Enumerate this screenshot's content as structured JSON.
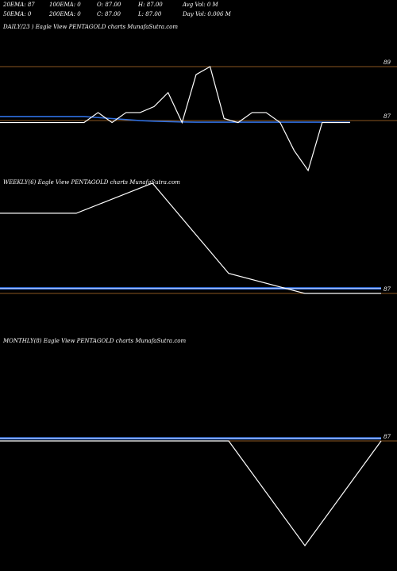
{
  "header": {
    "row1": [
      "20EMA: 87",
      "100EMA: 0",
      "O: 87.00",
      "H: 87.00",
      "Avg Vol: 0  M"
    ],
    "row2": [
      "50EMA: 0",
      "200EMA: 0",
      "C: 87.00",
      "L: 87.00",
      "Day Vol: 0.006  M"
    ]
  },
  "panels": {
    "daily_title": "DAILY/23                   ) Eagle  View  PENTAGOLD charts MunafaSutra.com",
    "weekly_title": "WEEKLY(6) Eagle  View  PENTAGOLD charts MunafaSutra.com",
    "monthly_title": "MONTHLY(8) Eagle  View  PENTAGOLD charts MunafaSutra.com"
  },
  "colors": {
    "background": "#000000",
    "price": "#ffffff",
    "ema": "#2f6fe0",
    "ref_line": "#b8732a"
  },
  "chart_data": [
    {
      "type": "line",
      "title": "DAILY",
      "ticks": [
        89,
        87
      ],
      "series": [
        {
          "values": [
            87,
            87,
            87,
            87,
            87,
            87,
            87,
            87.5,
            87,
            87.5,
            87.5,
            87.8,
            88.5,
            87,
            89.4,
            89.8,
            87.2,
            87,
            87.5,
            87.5,
            87,
            85.6,
            84.6,
            87,
            87,
            87
          ]
        }
      ],
      "ema": [
        87.3,
        87.3,
        87.3,
        87.3,
        87.3,
        87.3,
        87.3,
        87.25,
        87.2,
        87.15,
        87.1,
        87.07,
        87.05,
        87.03,
        87.02,
        87.02,
        87.02,
        87.02,
        87.02,
        87.02,
        87.02,
        87.02,
        87.02,
        87.02,
        87.02,
        87.02
      ]
    },
    {
      "type": "line",
      "title": "WEEKLY",
      "ticks": [
        87
      ],
      "series": [
        {
          "values": [
            87.8,
            87.8,
            88.1,
            87.2,
            87,
            87
          ]
        }
      ],
      "ema": [
        87.05,
        87.05,
        87.05,
        87.05,
        87.05,
        87.05
      ]
    },
    {
      "type": "line",
      "title": "MONTHLY",
      "ticks": [
        87
      ],
      "series": [
        {
          "values": [
            87,
            87,
            87,
            87,
            86.2,
            87
          ]
        }
      ],
      "ema": [
        87.02,
        87.02,
        87.02,
        87.02,
        87.02,
        87.02
      ]
    }
  ]
}
